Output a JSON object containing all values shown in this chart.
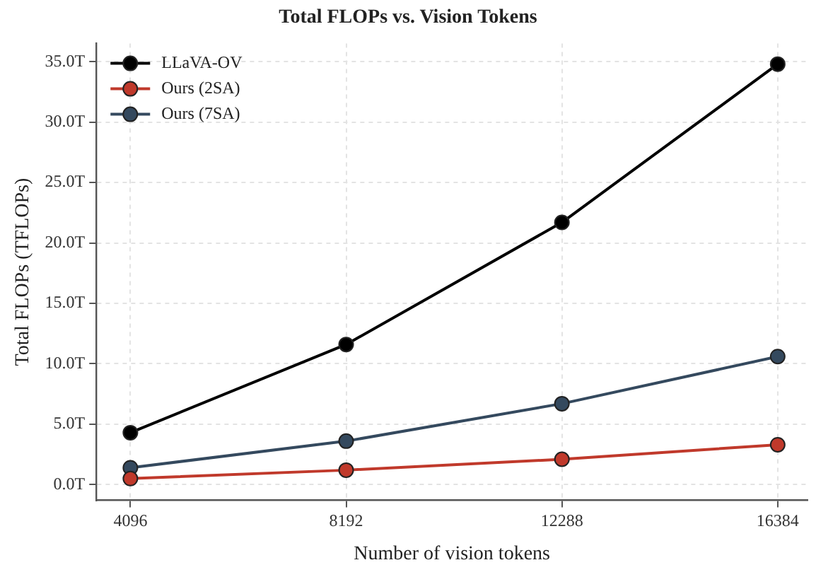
{
  "chart_data": {
    "type": "line",
    "title": "Total FLOPs vs. Vision Tokens",
    "xlabel": "Number of vision tokens",
    "ylabel": "Total FLOPs (TFLOPs)",
    "x": [
      4096,
      8192,
      12288,
      16384
    ],
    "series": [
      {
        "name": "LLaVA-OV",
        "color": "#000000",
        "values": [
          4.3,
          11.6,
          21.7,
          34.8
        ]
      },
      {
        "name": "Ours (2SA)",
        "color": "#c0392b",
        "values": [
          0.5,
          1.2,
          2.1,
          3.3
        ]
      },
      {
        "name": "Ours (7SA)",
        "color": "#34495e",
        "values": [
          1.4,
          3.6,
          6.7,
          10.6
        ]
      }
    ],
    "xlim": [
      3450,
      16950
    ],
    "xticks": [
      4096,
      8192,
      12288,
      16384
    ],
    "ylim": [
      -1.3,
      36.5
    ],
    "yticks": [
      {
        "value": 0,
        "label": "0.0T"
      },
      {
        "value": 5,
        "label": "5.0T"
      },
      {
        "value": 10,
        "label": "10.0T"
      },
      {
        "value": 15,
        "label": "15.0T"
      },
      {
        "value": 20,
        "label": "20.0T"
      },
      {
        "value": 25,
        "label": "25.0T"
      },
      {
        "value": 30,
        "label": "30.0T"
      },
      {
        "value": 35,
        "label": "35.0T"
      }
    ],
    "grid": true,
    "legend": "top left",
    "marker": "circle",
    "line_style": "solid"
  }
}
